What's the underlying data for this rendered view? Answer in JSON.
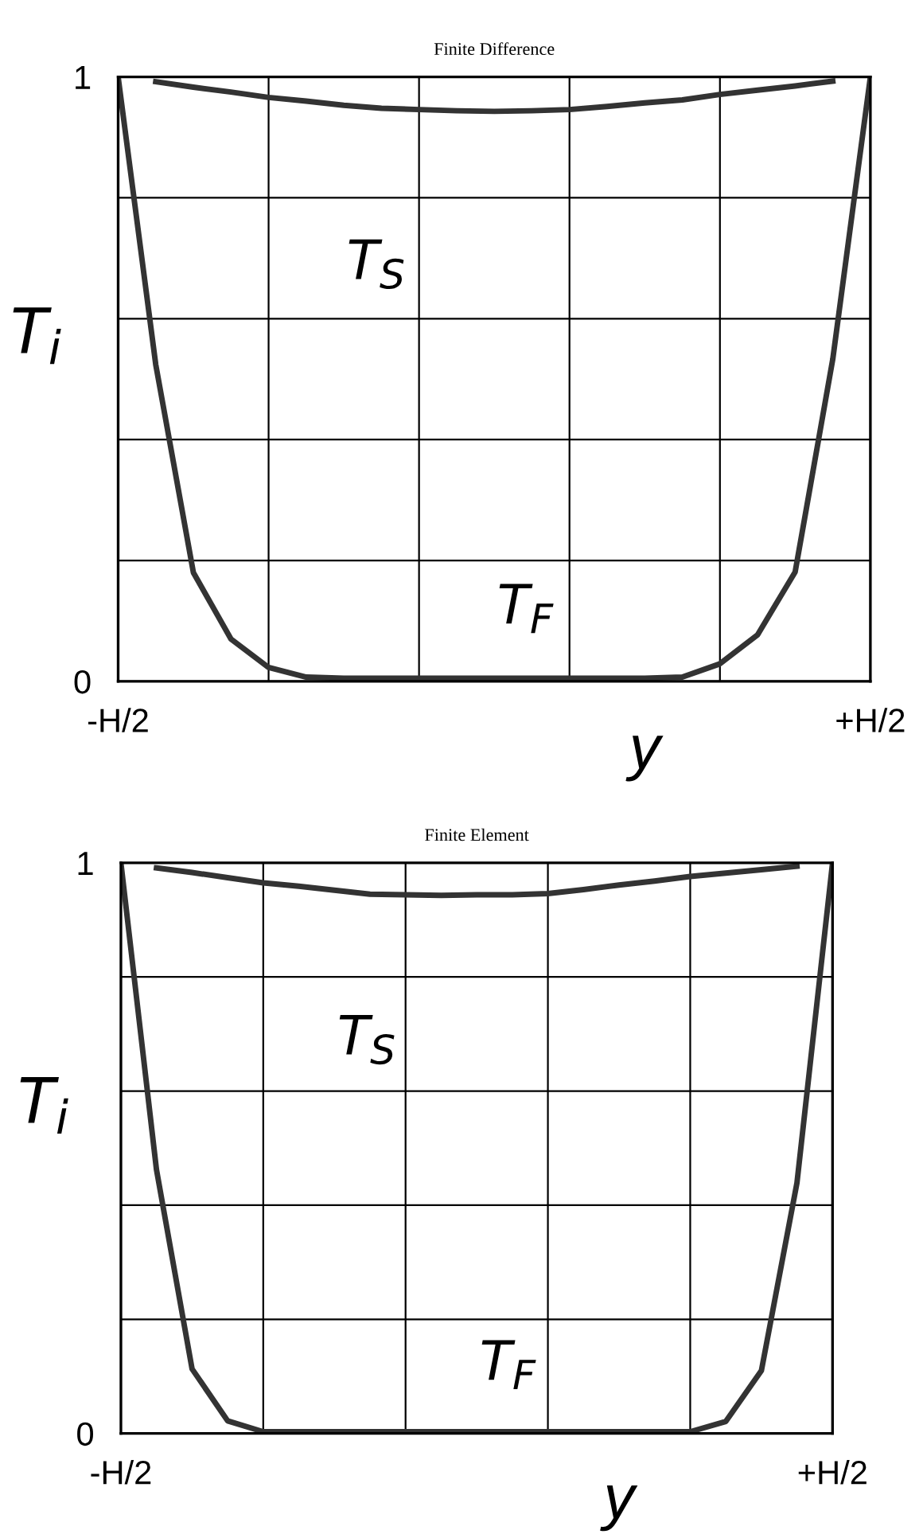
{
  "chart_data": [
    {
      "type": "line",
      "title": "Finite Difference",
      "xlabel": "y",
      "ylabel": "T$_{i}$",
      "categories": [
        "-H/2",
        null,
        null,
        null,
        null,
        null,
        null,
        null,
        null,
        null,
        null,
        null,
        null,
        null,
        null,
        null,
        null,
        null,
        null,
        null,
        "+H/2"
      ],
      "ylim": [
        0,
        1
      ],
      "yticks": [
        0,
        {
          "value": 0.2,
          "label": null
        },
        {
          "value": 0.4,
          "label": null
        },
        {
          "value": 0.6,
          "label": null
        },
        {
          "value": 0.8,
          "label": null
        },
        1
      ],
      "grid": true,
      "marker": "none",
      "line_style": "solid",
      "series": [
        {
          "name": "T$_{S}$",
          "color": "#333333",
          "values": [
            null,
            0.992,
            0.983,
            0.975,
            0.966,
            0.96,
            0.953,
            0.948,
            0.946,
            0.944,
            0.943,
            0.944,
            0.946,
            0.951,
            0.957,
            0.962,
            0.971,
            0.978,
            0.985,
            0.993,
            null
          ]
        },
        {
          "name": "T$_{F}$",
          "color": "#333333",
          "values": [
            1,
            0.524,
            0.18,
            0.07,
            0.023,
            0.007,
            0.005,
            0.005,
            0.005,
            0.005,
            0.005,
            0.005,
            0.005,
            0.005,
            0.005,
            0.007,
            0.029,
            0.077,
            0.181,
            0.533,
            1
          ]
        }
      ]
    },
    {
      "type": "line",
      "title": "Finite Element",
      "xlabel": "y",
      "ylabel": "T$_{i}$",
      "categories": [
        "-H/2",
        null,
        null,
        null,
        null,
        null,
        null,
        null,
        null,
        null,
        null,
        null,
        null,
        null,
        null,
        null,
        null,
        null,
        null,
        null,
        "+H/2"
      ],
      "ylim": [
        0,
        1
      ],
      "yticks": [
        0,
        {
          "value": 0.2,
          "label": null
        },
        {
          "value": 0.4,
          "label": null
        },
        {
          "value": 0.6,
          "label": null
        },
        {
          "value": 0.8,
          "label": null
        },
        1
      ],
      "grid": true,
      "marker": "none",
      "line_style": "solid",
      "series": [
        {
          "name": "T$_{S}$",
          "color": "#333333",
          "values": [
            null,
            0.991,
            0.983,
            0.974,
            0.965,
            0.959,
            0.952,
            0.945,
            0.944,
            0.943,
            0.944,
            0.944,
            0.946,
            0.953,
            0.961,
            0.968,
            0.976,
            0.982,
            0.988,
            0.994,
            null
          ]
        },
        {
          "name": "T$_{F}$",
          "color": "#333333",
          "values": [
            1,
            0.462,
            0.113,
            0.022,
            0.003,
            0.003,
            0.003,
            0.003,
            0.003,
            0.003,
            0.003,
            0.003,
            0.003,
            0.003,
            0.003,
            0.003,
            0.003,
            0.021,
            0.11,
            0.439,
            1
          ]
        }
      ]
    }
  ]
}
